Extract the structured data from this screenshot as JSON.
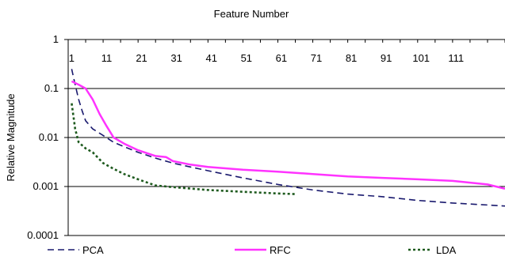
{
  "chart_data": {
    "type": "line",
    "title": "Feature Number",
    "xlabel": "Feature Number",
    "ylabel": "Relative Magnitude",
    "x_axis_position": "top",
    "x_ticks": [
      "1",
      "11",
      "21",
      "31",
      "41",
      "51",
      "61",
      "71",
      "81",
      "91",
      "101",
      "111"
    ],
    "xlim": [
      0,
      125
    ],
    "y_scale": "log",
    "ylim": [
      0.0001,
      1
    ],
    "y_ticks": [
      "1",
      "0.1",
      "0.01",
      "0.001",
      "0.0001"
    ],
    "y_tick_values": [
      1,
      0.1,
      0.01,
      0.001,
      0.0001
    ],
    "grid": true,
    "legend_position": "bottom",
    "series": [
      {
        "name": "PCA",
        "color": "#1a1a6e",
        "dash": "long-dash",
        "x": [
          1,
          2,
          3,
          4,
          5,
          7,
          10,
          13,
          16,
          20,
          25,
          30,
          35,
          40,
          50,
          60,
          70,
          80,
          90,
          100,
          110,
          120,
          125
        ],
        "y": [
          0.25,
          0.12,
          0.06,
          0.035,
          0.022,
          0.015,
          0.011,
          0.008,
          0.0065,
          0.005,
          0.0038,
          0.003,
          0.0025,
          0.0021,
          0.0015,
          0.0011,
          0.00085,
          0.0007,
          0.00062,
          0.00052,
          0.00046,
          0.00042,
          0.0004
        ]
      },
      {
        "name": "RFC",
        "color": "#ff33ff",
        "dash": "solid",
        "x": [
          1,
          3,
          5,
          7,
          9,
          11,
          13,
          16,
          20,
          25,
          28,
          30,
          35,
          40,
          50,
          60,
          70,
          80,
          90,
          100,
          110,
          115,
          120,
          125
        ],
        "y": [
          0.14,
          0.12,
          0.1,
          0.06,
          0.03,
          0.017,
          0.01,
          0.0075,
          0.0055,
          0.0042,
          0.004,
          0.0033,
          0.0028,
          0.0025,
          0.0022,
          0.002,
          0.0018,
          0.0016,
          0.0015,
          0.0014,
          0.0013,
          0.0012,
          0.0011,
          0.0009
        ]
      },
      {
        "name": "LDA",
        "color": "#1e5a1e",
        "dash": "dotted",
        "x": [
          1,
          2,
          3,
          5,
          7,
          10,
          13,
          16,
          20,
          25,
          30,
          40,
          50,
          60,
          65
        ],
        "y": [
          0.05,
          0.015,
          0.008,
          0.006,
          0.005,
          0.003,
          0.0023,
          0.0018,
          0.0014,
          0.00105,
          0.00097,
          0.00085,
          0.00078,
          0.00072,
          0.0007
        ]
      }
    ]
  }
}
